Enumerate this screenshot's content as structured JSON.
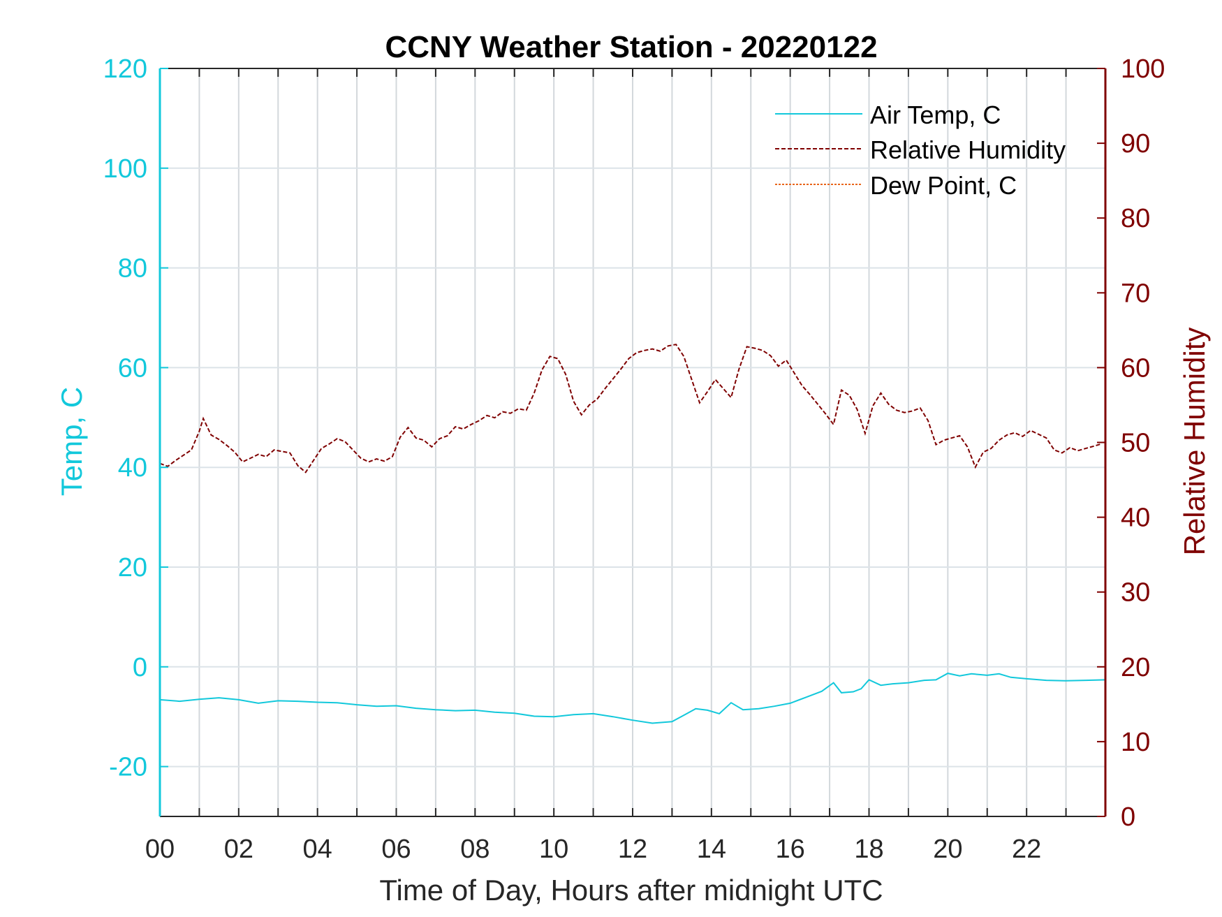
{
  "chart_data": {
    "type": "line",
    "title": "CCNY Weather Station - 20220122",
    "xlabel": "Time of Day, Hours after midnight UTC",
    "ylabel_left": "Temp, C",
    "ylabel_right": "Relative Humidity",
    "xlim": [
      0,
      24
    ],
    "ylim_left": [
      -30,
      120
    ],
    "ylim_right": [
      0,
      100
    ],
    "x_tick_labels": [
      "00",
      "02",
      "04",
      "06",
      "08",
      "10",
      "12",
      "14",
      "16",
      "18",
      "20",
      "22"
    ],
    "y_left_ticks": [
      -20,
      0,
      20,
      40,
      60,
      80,
      100,
      120
    ],
    "y_right_ticks": [
      0,
      10,
      20,
      30,
      40,
      50,
      60,
      70,
      80,
      90,
      100
    ],
    "grid": "on",
    "legend_position": "top-right",
    "colors": {
      "temp": "#12C8DB",
      "humidity": "#7F0000",
      "dewpoint": "#E8661A",
      "grid": "#DCE3E8"
    },
    "legend": [
      "Air Temp, C",
      "Relative Humidity",
      "Dew Point, C"
    ],
    "series": [
      {
        "name": "Air Temp, C",
        "axis": "left",
        "x": [
          0,
          0.5,
          1,
          1.5,
          2,
          2.5,
          3,
          3.5,
          4,
          4.5,
          5,
          5.5,
          6,
          6.5,
          7,
          7.5,
          8,
          8.5,
          9,
          9.5,
          10,
          10.5,
          11,
          11.5,
          12,
          12.5,
          13,
          13.3,
          13.6,
          13.9,
          14.2,
          14.5,
          14.8,
          15.2,
          15.6,
          16,
          16.4,
          16.8,
          17.1,
          17.3,
          17.6,
          17.8,
          18,
          18.3,
          18.6,
          19,
          19.4,
          19.7,
          20,
          20.3,
          20.6,
          21,
          21.3,
          21.6,
          22,
          22.5,
          23,
          23.5,
          24
        ],
        "values": [
          -6.6,
          -6.9,
          -6.5,
          -6.2,
          -6.6,
          -7.3,
          -6.8,
          -6.9,
          -7.1,
          -7.2,
          -7.6,
          -7.9,
          -7.8,
          -8.3,
          -8.6,
          -8.8,
          -8.7,
          -9.1,
          -9.3,
          -9.9,
          -10.0,
          -9.6,
          -9.4,
          -10.0,
          -10.7,
          -11.3,
          -11.0,
          -9.7,
          -8.4,
          -8.7,
          -9.4,
          -7.2,
          -8.6,
          -8.4,
          -7.9,
          -7.3,
          -6.1,
          -4.9,
          -3.2,
          -5.2,
          -5.0,
          -4.4,
          -2.6,
          -3.7,
          -3.4,
          -3.2,
          -2.7,
          -2.6,
          -1.3,
          -1.8,
          -1.4,
          -1.7,
          -1.4,
          -2.1,
          -2.4,
          -2.7,
          -2.8,
          -2.7,
          -2.6
        ]
      },
      {
        "name": "Relative Humidity",
        "axis": "right",
        "x": [
          0,
          0.2,
          0.4,
          0.6,
          0.8,
          1.0,
          1.1,
          1.3,
          1.5,
          1.7,
          1.9,
          2.1,
          2.3,
          2.5,
          2.7,
          2.9,
          3.1,
          3.3,
          3.5,
          3.7,
          3.9,
          4.1,
          4.3,
          4.5,
          4.7,
          4.9,
          5.1,
          5.3,
          5.5,
          5.7,
          5.9,
          6.1,
          6.3,
          6.5,
          6.7,
          6.9,
          7.1,
          7.3,
          7.5,
          7.7,
          7.9,
          8.1,
          8.3,
          8.5,
          8.7,
          8.9,
          9.1,
          9.3,
          9.5,
          9.7,
          9.9,
          10.1,
          10.3,
          10.5,
          10.7,
          10.9,
          11.1,
          11.3,
          11.5,
          11.7,
          11.9,
          12.1,
          12.3,
          12.5,
          12.7,
          12.9,
          13.1,
          13.3,
          13.5,
          13.7,
          13.9,
          14.1,
          14.3,
          14.5,
          14.7,
          14.9,
          15.1,
          15.3,
          15.5,
          15.7,
          15.9,
          16.1,
          16.3,
          16.5,
          16.7,
          16.9,
          17.1,
          17.3,
          17.5,
          17.7,
          17.9,
          18.1,
          18.3,
          18.5,
          18.7,
          18.9,
          19.1,
          19.3,
          19.5,
          19.7,
          19.9,
          20.1,
          20.3,
          20.5,
          20.7,
          20.9,
          21.1,
          21.3,
          21.5,
          21.7,
          21.9,
          22.1,
          22.3,
          22.5,
          22.7,
          22.9,
          23.1,
          23.3,
          23.5,
          23.7,
          23.9
        ],
        "values": [
          47.2,
          46.8,
          47.6,
          48.3,
          49.0,
          51.5,
          53.2,
          51.0,
          50.4,
          49.6,
          48.7,
          47.4,
          47.9,
          48.4,
          48.1,
          49.0,
          48.8,
          48.6,
          46.9,
          46.0,
          47.6,
          49.2,
          49.8,
          50.5,
          50.1,
          49.0,
          47.9,
          47.4,
          47.8,
          47.5,
          48.1,
          50.7,
          52.0,
          50.6,
          50.3,
          49.4,
          50.5,
          50.9,
          52.1,
          51.8,
          52.4,
          52.9,
          53.6,
          53.3,
          54.1,
          53.9,
          54.5,
          54.3,
          56.6,
          59.7,
          61.5,
          61.2,
          59.1,
          55.5,
          53.7,
          55.0,
          55.8,
          57.2,
          58.5,
          59.8,
          61.2,
          62.0,
          62.3,
          62.5,
          62.2,
          62.9,
          63.1,
          61.5,
          58.4,
          55.3,
          56.8,
          58.4,
          57.2,
          56.0,
          59.8,
          62.8,
          62.6,
          62.3,
          61.6,
          60.2,
          61.0,
          59.3,
          57.6,
          56.4,
          55.1,
          53.8,
          52.4,
          57.0,
          56.3,
          54.4,
          51.2,
          54.9,
          56.6,
          55.1,
          54.3,
          54.0,
          54.2,
          54.6,
          52.9,
          49.7,
          50.3,
          50.6,
          50.9,
          49.4,
          46.7,
          48.7,
          49.2,
          50.3,
          51.0,
          51.3,
          50.8,
          51.6,
          51.1,
          50.6,
          49.0,
          48.6,
          49.3,
          48.9,
          49.2,
          49.5,
          49.8
        ]
      },
      {
        "name": "Dew Point, C",
        "axis": "left",
        "x": [],
        "values": []
      }
    ]
  }
}
